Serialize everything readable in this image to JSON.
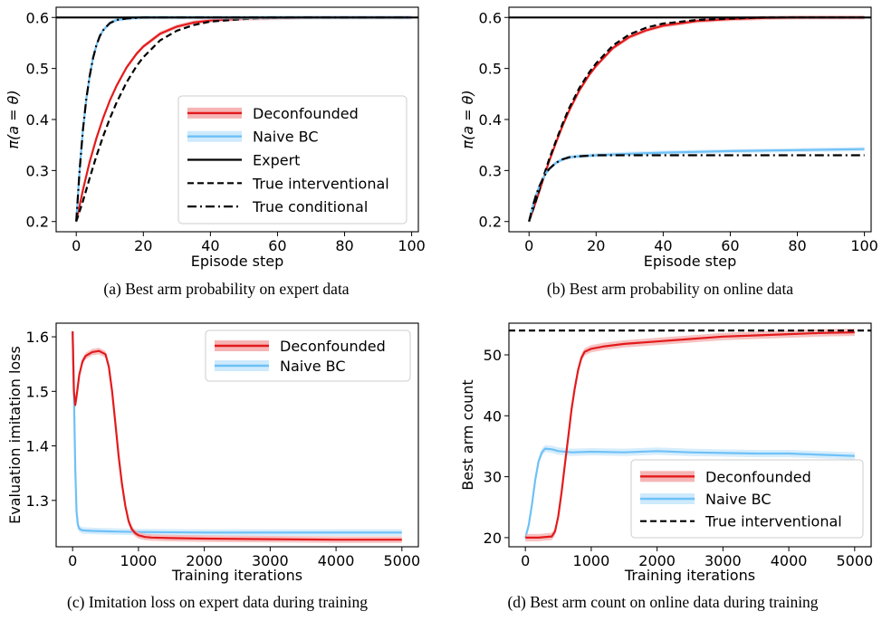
{
  "figure": {
    "captions": [
      "(a) Best arm probability on expert data",
      "(b) Best arm probability on online data",
      "(c) Imitation loss on expert data during training",
      "(d) Best arm count on online data during training"
    ]
  },
  "colors": {
    "deconfounded": "#e31a1c",
    "deconfounded_band": "#f4a8a8",
    "naive_bc": "#6ec1f7",
    "naive_bc_band": "#c6e6fb",
    "reference": "#000000"
  },
  "chart_data": [
    {
      "id": "a",
      "type": "line",
      "xlabel": "Episode step",
      "ylabel": "π(a = θ)",
      "xlim": [
        -6,
        102
      ],
      "ylim": [
        0.18,
        0.62
      ],
      "xticks": [
        0,
        20,
        40,
        60,
        80,
        100
      ],
      "yticks": [
        0.2,
        0.3,
        0.4,
        0.5,
        0.6
      ],
      "ytick_labels": [
        "0.2",
        "0.3",
        "0.4",
        "0.5",
        "0.6"
      ],
      "grid": false,
      "legend": {
        "position": "lower-right",
        "entries": [
          "Deconfounded",
          "Naive BC",
          "Expert",
          "True interventional",
          "True conditional"
        ]
      },
      "series": [
        {
          "name": "Deconfounded",
          "style": "solid-band",
          "color": "#e31a1c",
          "x": [
            0,
            2,
            4,
            6,
            8,
            10,
            12,
            15,
            18,
            20,
            25,
            30,
            35,
            40,
            50,
            60,
            70,
            80,
            90,
            100
          ],
          "y": [
            0.2,
            0.262,
            0.317,
            0.363,
            0.403,
            0.437,
            0.466,
            0.502,
            0.529,
            0.543,
            0.568,
            0.582,
            0.59,
            0.594,
            0.598,
            0.599,
            0.6,
            0.6,
            0.6,
            0.6
          ]
        },
        {
          "name": "True interventional",
          "style": "dashed",
          "color": "#000000",
          "x": [
            0,
            2,
            4,
            6,
            8,
            10,
            12,
            15,
            18,
            20,
            25,
            30,
            35,
            40,
            50,
            60,
            70,
            80,
            90,
            100
          ],
          "y": [
            0.2,
            0.24,
            0.285,
            0.328,
            0.367,
            0.402,
            0.433,
            0.473,
            0.505,
            0.522,
            0.555,
            0.574,
            0.585,
            0.592,
            0.597,
            0.599,
            0.6,
            0.6,
            0.6,
            0.6
          ]
        },
        {
          "name": "Naive BC",
          "style": "solid-band",
          "color": "#6ec1f7",
          "x": [
            0,
            1,
            2,
            3,
            4,
            5,
            6,
            7,
            8,
            10,
            12,
            15,
            20,
            30,
            100
          ],
          "y": [
            0.2,
            0.3,
            0.38,
            0.44,
            0.485,
            0.52,
            0.545,
            0.563,
            0.575,
            0.589,
            0.595,
            0.598,
            0.6,
            0.6,
            0.6
          ]
        },
        {
          "name": "True conditional",
          "style": "dashdot",
          "color": "#000000",
          "x": [
            0,
            1,
            2,
            3,
            4,
            5,
            6,
            7,
            8,
            10,
            12,
            15,
            20,
            30,
            100
          ],
          "y": [
            0.2,
            0.3,
            0.38,
            0.44,
            0.485,
            0.52,
            0.545,
            0.563,
            0.575,
            0.589,
            0.595,
            0.598,
            0.6,
            0.6,
            0.6
          ]
        },
        {
          "name": "Expert",
          "style": "hline",
          "color": "#000000",
          "x": [
            -6,
            102
          ],
          "y": [
            0.6,
            0.6
          ]
        }
      ]
    },
    {
      "id": "b",
      "type": "line",
      "xlabel": "Episode step",
      "ylabel": "π(a = θ)",
      "xlim": [
        -6,
        102
      ],
      "ylim": [
        0.18,
        0.62
      ],
      "xticks": [
        0,
        20,
        40,
        60,
        80,
        100
      ],
      "yticks": [
        0.2,
        0.3,
        0.4,
        0.5,
        0.6
      ],
      "ytick_labels": [
        "0.2",
        "0.3",
        "0.4",
        "0.5",
        "0.6"
      ],
      "grid": false,
      "legend": null,
      "series": [
        {
          "name": "Deconfounded",
          "style": "solid-band",
          "color": "#e31a1c",
          "x": [
            0,
            2,
            4,
            6,
            8,
            10,
            12,
            15,
            18,
            20,
            25,
            30,
            35,
            40,
            50,
            60,
            70,
            80,
            90,
            100
          ],
          "y": [
            0.2,
            0.238,
            0.278,
            0.318,
            0.354,
            0.388,
            0.418,
            0.457,
            0.488,
            0.505,
            0.54,
            0.562,
            0.575,
            0.584,
            0.593,
            0.597,
            0.599,
            0.6,
            0.6,
            0.6
          ]
        },
        {
          "name": "True interventional",
          "style": "dashed",
          "color": "#000000",
          "x": [
            0,
            2,
            4,
            6,
            8,
            10,
            12,
            15,
            18,
            20,
            25,
            30,
            35,
            40,
            50,
            60,
            70,
            80,
            90,
            100
          ],
          "y": [
            0.2,
            0.24,
            0.282,
            0.322,
            0.358,
            0.392,
            0.423,
            0.462,
            0.493,
            0.51,
            0.545,
            0.567,
            0.58,
            0.588,
            0.595,
            0.598,
            0.6,
            0.6,
            0.6,
            0.6
          ]
        },
        {
          "name": "Naive BC",
          "style": "solid-band",
          "color": "#6ec1f7",
          "x": [
            0,
            1,
            2,
            3,
            4,
            5,
            6,
            8,
            10,
            12,
            15,
            20,
            30,
            40,
            60,
            80,
            100
          ],
          "y": [
            0.2,
            0.227,
            0.25,
            0.268,
            0.282,
            0.294,
            0.303,
            0.315,
            0.322,
            0.326,
            0.328,
            0.33,
            0.333,
            0.335,
            0.338,
            0.34,
            0.342
          ]
        },
        {
          "name": "True conditional",
          "style": "dashdot",
          "color": "#000000",
          "x": [
            0,
            1,
            2,
            3,
            4,
            5,
            6,
            8,
            10,
            12,
            15,
            20,
            30,
            100
          ],
          "y": [
            0.2,
            0.227,
            0.25,
            0.268,
            0.282,
            0.294,
            0.303,
            0.315,
            0.322,
            0.326,
            0.328,
            0.33,
            0.33,
            0.33
          ]
        },
        {
          "name": "Expert",
          "style": "hline",
          "color": "#000000",
          "x": [
            -6,
            102
          ],
          "y": [
            0.6,
            0.6
          ]
        }
      ]
    },
    {
      "id": "c",
      "type": "line",
      "xlabel": "Training iterations",
      "ylabel": "Evaluation imitation loss",
      "xlim": [
        -250,
        5250
      ],
      "ylim": [
        1.215,
        1.625
      ],
      "xticks": [
        0,
        1000,
        2000,
        3000,
        4000,
        5000
      ],
      "yticks": [
        1.3,
        1.4,
        1.5,
        1.6
      ],
      "ytick_labels": [
        "1.3",
        "1.4",
        "1.5",
        "1.6"
      ],
      "grid": false,
      "legend": {
        "position": "top-right",
        "entries": [
          "Deconfounded",
          "Naive BC"
        ]
      },
      "series": [
        {
          "name": "Naive BC",
          "style": "solid-band",
          "color": "#6ec1f7",
          "x": [
            0,
            20,
            40,
            60,
            80,
            100,
            150,
            300,
            600,
            1000,
            2000,
            3000,
            4000,
            5000
          ],
          "y": [
            1.61,
            1.5,
            1.36,
            1.28,
            1.255,
            1.248,
            1.245,
            1.244,
            1.243,
            1.242,
            1.241,
            1.241,
            1.241,
            1.241
          ]
        },
        {
          "name": "Deconfounded",
          "style": "solid-band",
          "color": "#e31a1c",
          "x": [
            0,
            20,
            40,
            60,
            100,
            150,
            200,
            300,
            400,
            500,
            550,
            600,
            650,
            700,
            750,
            800,
            850,
            900,
            950,
            1000,
            1100,
            1200,
            1500,
            2000,
            3000,
            4000,
            5000
          ],
          "y": [
            1.61,
            1.5,
            1.475,
            1.49,
            1.53,
            1.555,
            1.565,
            1.572,
            1.574,
            1.568,
            1.545,
            1.5,
            1.44,
            1.38,
            1.33,
            1.29,
            1.262,
            1.247,
            1.24,
            1.236,
            1.233,
            1.232,
            1.231,
            1.23,
            1.229,
            1.228,
            1.228
          ]
        }
      ]
    },
    {
      "id": "d",
      "type": "line",
      "xlabel": "Training iterations",
      "ylabel": "Best arm count",
      "xlim": [
        -250,
        5250
      ],
      "ylim": [
        18.5,
        55.2
      ],
      "xticks": [
        0,
        1000,
        2000,
        3000,
        4000,
        5000
      ],
      "yticks": [
        20,
        30,
        40,
        50
      ],
      "ytick_labels": [
        "20",
        "30",
        "40",
        "50"
      ],
      "grid": false,
      "legend": {
        "position": "lower-right",
        "entries": [
          "Deconfounded",
          "Naive BC",
          "True interventional"
        ]
      },
      "series": [
        {
          "name": "Naive BC",
          "style": "solid-band",
          "color": "#6ec1f7",
          "x": [
            0,
            50,
            100,
            150,
            200,
            250,
            300,
            400,
            500,
            700,
            1000,
            1500,
            2000,
            2500,
            3000,
            3500,
            4000,
            4500,
            5000
          ],
          "y": [
            20,
            22,
            25.5,
            29.5,
            32.5,
            34,
            34.6,
            34.5,
            34.2,
            34.0,
            34.1,
            34.0,
            34.2,
            34.0,
            33.9,
            33.8,
            33.8,
            33.6,
            33.4
          ]
        },
        {
          "name": "Deconfounded",
          "style": "solid-band",
          "color": "#e31a1c",
          "x": [
            0,
            200,
            400,
            450,
            500,
            550,
            600,
            650,
            700,
            750,
            800,
            850,
            900,
            1000,
            1200,
            1500,
            2000,
            2500,
            3000,
            3500,
            4000,
            4500,
            5000
          ],
          "y": [
            20,
            20,
            20.2,
            21,
            23.5,
            27.5,
            32,
            36.5,
            41,
            44.5,
            47.5,
            49.5,
            50.5,
            51,
            51.4,
            51.8,
            52.2,
            52.6,
            53,
            53.2,
            53.4,
            53.6,
            53.7
          ]
        },
        {
          "name": "True interventional",
          "style": "dashed-hline",
          "color": "#000000",
          "x": [
            -250,
            5250
          ],
          "y": [
            54,
            54
          ]
        }
      ]
    }
  ]
}
